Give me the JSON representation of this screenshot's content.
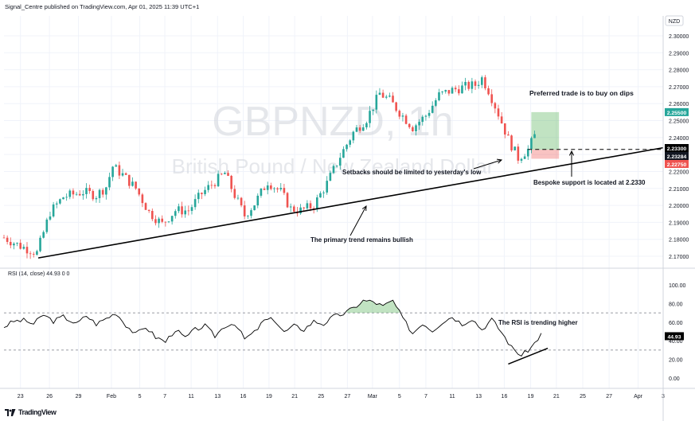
{
  "header": {
    "publisher_line": "Signal_Centre published on TradingView.com, Apr 01, 2025 11:39 UTC+1"
  },
  "footer": {
    "brand": "TradingView",
    "logo_icon": "tradingview-logo-icon"
  },
  "watermark": {
    "symbol": "GBPNZD, 1h",
    "name": "British Pound / New Zealand Dollar"
  },
  "currency_badge": "NZD",
  "rsi": {
    "label": "RSI (14, close)  44.93  0  0",
    "value_badge": "44.93"
  },
  "annotations": {
    "trade": "Preferred trade is to buy on dips",
    "setbacks": "Setbacks should be limited to yesterday's low",
    "support": "Bespoke support is located at 2.2330",
    "primary": "The primary trend remains bullish",
    "rsi_trend": "The RSI is trending higher"
  },
  "colors": {
    "up": "#26a69a",
    "down": "#ef5350",
    "rsi_line": "#000000",
    "trend_line": "#000000",
    "target_zone": "#4caf50",
    "stop_zone": "#ef5350",
    "grid": "#f0f3fa",
    "axis_text": "#131722"
  },
  "chart_data": [
    {
      "type": "candlestick",
      "title": "GBPNZD, 1h",
      "subtitle": "British Pound / New Zealand Dollar",
      "ylim": [
        2.165,
        2.31
      ],
      "y_ticks": [
        2.17,
        2.18,
        2.19,
        2.2,
        2.21,
        2.22,
        2.23,
        2.24,
        2.25,
        2.26,
        2.27,
        2.28,
        2.29,
        2.3
      ],
      "y_tick_labels": [
        "2.17000",
        "2.18000",
        "2.19000",
        "2.20000",
        "2.21000",
        "2.22000",
        "2.23000",
        "2.24000",
        "2.25000",
        "2.26000",
        "2.27000",
        "2.28000",
        "2.29000",
        "2.30000"
      ],
      "x_tick_labels": [
        "23",
        "26",
        "29",
        "Feb",
        "5",
        "7",
        "11",
        "13",
        "16",
        "19",
        "21",
        "25",
        "27",
        "Mar",
        "5",
        "7",
        "11",
        "13",
        "16",
        "19",
        "21",
        "25",
        "27",
        "Apr",
        "3"
      ],
      "x_range": [
        0,
        100
      ],
      "x_ticks": [
        2.5,
        6.9,
        11.3,
        16.3,
        20.6,
        24.4,
        28.4,
        32.4,
        36.3,
        40.2,
        44.1,
        48.1,
        52.1,
        55.9,
        60.0,
        64.0,
        68.0,
        72.0,
        75.9,
        79.9,
        83.8,
        87.8,
        91.8,
        96.2,
        100.0
      ],
      "price_path": [
        [
          0,
          2.181
        ],
        [
          2.5,
          2.176
        ],
        [
          5,
          2.172
        ],
        [
          7,
          2.196
        ],
        [
          9,
          2.205
        ],
        [
          12,
          2.208
        ],
        [
          14,
          2.206
        ],
        [
          15.5,
          2.211
        ],
        [
          16.5,
          2.223
        ],
        [
          18,
          2.218
        ],
        [
          20,
          2.21
        ],
        [
          22,
          2.196
        ],
        [
          24,
          2.189
        ],
        [
          26,
          2.197
        ],
        [
          28,
          2.197
        ],
        [
          30,
          2.207
        ],
        [
          32,
          2.214
        ],
        [
          33.5,
          2.219
        ],
        [
          35,
          2.206
        ],
        [
          36.5,
          2.194
        ],
        [
          38,
          2.201
        ],
        [
          40,
          2.214
        ],
        [
          42,
          2.208
        ],
        [
          43.5,
          2.198
        ],
        [
          45,
          2.197
        ],
        [
          47,
          2.2
        ],
        [
          49,
          2.213
        ],
        [
          51,
          2.229
        ],
        [
          53,
          2.243
        ],
        [
          55,
          2.251
        ],
        [
          57,
          2.266
        ],
        [
          58.5,
          2.262
        ],
        [
          60,
          2.255
        ],
        [
          62,
          2.246
        ],
        [
          64,
          2.253
        ],
        [
          66,
          2.265
        ],
        [
          68,
          2.268
        ],
        [
          70,
          2.27
        ],
        [
          71.5,
          2.271
        ],
        [
          72.5,
          2.275
        ],
        [
          73.5,
          2.268
        ],
        [
          75,
          2.254
        ],
        [
          76.5,
          2.239
        ],
        [
          78,
          2.228
        ],
        [
          79.5,
          2.233
        ],
        [
          80.5,
          2.241
        ]
      ],
      "levels": {
        "target": 2.255,
        "current": 2.23284,
        "support": 2.233,
        "stop": 2.2275
      },
      "price_badges": [
        "2.25500",
        "2.23300",
        "2.23284",
        "2.22750"
      ],
      "trend_line": [
        [
          5.2,
          2.169
        ],
        [
          100,
          2.234
        ]
      ]
    },
    {
      "type": "line",
      "title": "RSI (14, close)",
      "ylim": [
        0,
        100
      ],
      "y_ticks": [
        0,
        20,
        40,
        60,
        80,
        100
      ],
      "y_tick_labels": [
        "0.00",
        "20.00",
        "40.00",
        "60.00",
        "80.00",
        "100.00"
      ],
      "bands": [
        30,
        70
      ],
      "value": 44.93,
      "series": [
        {
          "values_path": [
            [
              0,
              55
            ],
            [
              1.5,
              61
            ],
            [
              3,
              62
            ],
            [
              4.5,
              58
            ],
            [
              6,
              68
            ],
            [
              7.5,
              61
            ],
            [
              9,
              66
            ],
            [
              11,
              58
            ],
            [
              12.5,
              67
            ],
            [
              14,
              58
            ],
            [
              15.5,
              64
            ],
            [
              17,
              70
            ],
            [
              18.5,
              57
            ],
            [
              20,
              47
            ],
            [
              21.5,
              55
            ],
            [
              23,
              44
            ],
            [
              24.5,
              39
            ],
            [
              26,
              52
            ],
            [
              27.5,
              43
            ],
            [
              29,
              52
            ],
            [
              30.5,
              56
            ],
            [
              32,
              45
            ],
            [
              33.5,
              56
            ],
            [
              35,
              59
            ],
            [
              36.5,
              42
            ],
            [
              38,
              49
            ],
            [
              39.5,
              62
            ],
            [
              41,
              63
            ],
            [
              42.5,
              49
            ],
            [
              44,
              56
            ],
            [
              45.5,
              52
            ],
            [
              47,
              61
            ],
            [
              48.5,
              58
            ],
            [
              50,
              66
            ],
            [
              51.5,
              69
            ],
            [
              53,
              75
            ],
            [
              54.5,
              83
            ],
            [
              56,
              82
            ],
            [
              57.5,
              77
            ],
            [
              59,
              83
            ],
            [
              60.5,
              64
            ],
            [
              62,
              48
            ],
            [
              63.5,
              59
            ],
            [
              65,
              51
            ],
            [
              66.5,
              60
            ],
            [
              68,
              66
            ],
            [
              69.5,
              58
            ],
            [
              71,
              64
            ],
            [
              72.5,
              52
            ],
            [
              74,
              63
            ],
            [
              75.5,
              49
            ],
            [
              77,
              33
            ],
            [
              78.5,
              24
            ],
            [
              80,
              33
            ],
            [
              81.5,
              47
            ]
          ]
        }
      ],
      "trend_line": [
        [
          76.5,
          15
        ],
        [
          82.5,
          32
        ]
      ]
    }
  ]
}
